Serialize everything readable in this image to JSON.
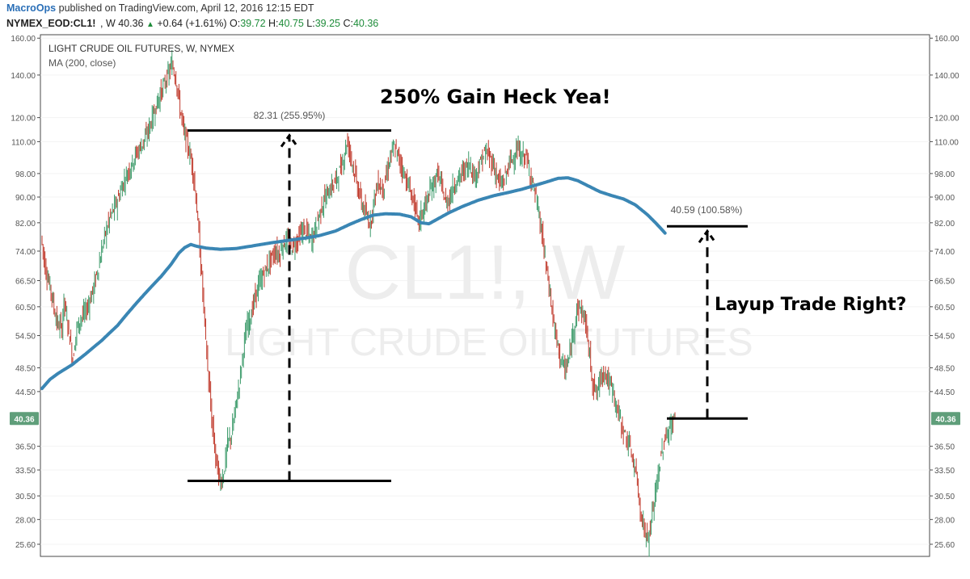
{
  "header": {
    "publisher": "MacroOps",
    "published_text": "published on TradingView.com, April 12, 2016 12:15 EDT"
  },
  "quote": {
    "symbol": "NYMEX_EOD:CL1!",
    "interval_price": ", W 40.36",
    "change": "+0.64 (+1.61%)",
    "open_label": "O:",
    "open": "39.72",
    "high_label": "H:",
    "high": "40.75",
    "low_label": "L:",
    "low": "39.25",
    "close_label": "C:",
    "close": "40.36",
    "colors": {
      "green": "#1e8c3a",
      "brand": "#2a6fb7"
    }
  },
  "chart_data": {
    "type": "line",
    "title": "LIGHT CRUDE OIL FUTURES, W, NYMEX",
    "indicator_label": "MA (200, close)",
    "watermark_symbol": "CL1!, W",
    "watermark_name": "LIGHT CRUDE OIL FUTURES",
    "price_axis_ticks": [
      "160.00",
      "140.00",
      "120.00",
      "110.00",
      "98.00",
      "90.00",
      "82.00",
      "74.00",
      "66.50",
      "60.50",
      "54.50",
      "48.50",
      "44.50",
      "36.50",
      "33.50",
      "30.50",
      "28.00",
      "25.60"
    ],
    "ylim": [
      24.5,
      162
    ],
    "scale": "log",
    "last_price_label": "40.36",
    "last_price_color": "#5f9e7a",
    "price_series": {
      "name": "",
      "colors": {
        "up": "#3d9b6b",
        "down": "#c0392b"
      },
      "keypoints": [
        [
          0,
          78
        ],
        [
          4,
          70
        ],
        [
          10,
          64
        ],
        [
          16,
          57
        ],
        [
          21,
          56
        ],
        [
          23,
          62
        ],
        [
          26,
          58
        ],
        [
          32,
          50
        ],
        [
          36,
          56
        ],
        [
          40,
          58
        ],
        [
          46,
          60
        ],
        [
          52,
          64
        ],
        [
          58,
          70
        ],
        [
          64,
          78
        ],
        [
          70,
          84
        ],
        [
          76,
          88
        ],
        [
          82,
          94
        ],
        [
          88,
          99
        ],
        [
          94,
          104
        ],
        [
          100,
          108
        ],
        [
          106,
          112
        ],
        [
          112,
          120
        ],
        [
          118,
          128
        ],
        [
          124,
          135
        ],
        [
          128,
          140
        ],
        [
          132,
          146
        ],
        [
          136,
          138
        ],
        [
          140,
          124
        ],
        [
          144,
          114
        ],
        [
          148,
          108
        ],
        [
          152,
          102
        ],
        [
          156,
          90
        ],
        [
          160,
          74
        ],
        [
          164,
          60
        ],
        [
          168,
          48
        ],
        [
          172,
          40
        ],
        [
          176,
          35
        ],
        [
          180,
          32
        ],
        [
          184,
          33
        ],
        [
          188,
          37
        ],
        [
          192,
          38
        ],
        [
          196,
          42
        ],
        [
          200,
          46
        ],
        [
          204,
          52
        ],
        [
          208,
          57
        ],
        [
          212,
          59
        ],
        [
          216,
          63
        ],
        [
          220,
          66
        ],
        [
          224,
          68
        ],
        [
          228,
          70
        ],
        [
          232,
          72
        ],
        [
          236,
          74
        ],
        [
          240,
          73
        ],
        [
          244,
          76
        ],
        [
          248,
          77
        ],
        [
          252,
          75
        ],
        [
          256,
          76
        ],
        [
          260,
          78
        ],
        [
          264,
          80
        ],
        [
          268,
          79
        ],
        [
          272,
          77
        ],
        [
          276,
          80
        ],
        [
          280,
          84
        ],
        [
          284,
          88
        ],
        [
          288,
          91
        ],
        [
          292,
          93
        ],
        [
          296,
          95
        ],
        [
          300,
          98
        ],
        [
          304,
          102
        ],
        [
          308,
          110
        ],
        [
          312,
          105
        ],
        [
          316,
          98
        ],
        [
          320,
          92
        ],
        [
          324,
          87
        ],
        [
          328,
          84
        ],
        [
          332,
          82
        ],
        [
          336,
          90
        ],
        [
          340,
          95
        ],
        [
          344,
          92
        ],
        [
          348,
          97
        ],
        [
          352,
          104
        ],
        [
          356,
          108
        ],
        [
          360,
          104
        ],
        [
          364,
          100
        ],
        [
          368,
          96
        ],
        [
          372,
          92
        ],
        [
          376,
          88
        ],
        [
          380,
          82
        ],
        [
          384,
          85
        ],
        [
          388,
          88
        ],
        [
          392,
          92
        ],
        [
          396,
          95
        ],
        [
          400,
          98
        ],
        [
          404,
          93
        ],
        [
          408,
          88
        ],
        [
          412,
          90
        ],
        [
          416,
          94
        ],
        [
          420,
          96
        ],
        [
          424,
          98
        ],
        [
          428,
          100
        ],
        [
          432,
          102
        ],
        [
          436,
          97
        ],
        [
          440,
          99
        ],
        [
          444,
          103
        ],
        [
          448,
          106
        ],
        [
          452,
          104
        ],
        [
          456,
          101
        ],
        [
          460,
          96
        ],
        [
          464,
          94
        ],
        [
          468,
          97
        ],
        [
          472,
          102
        ],
        [
          476,
          104
        ],
        [
          480,
          107
        ],
        [
          484,
          104
        ],
        [
          488,
          105
        ],
        [
          492,
          99
        ],
        [
          496,
          94
        ],
        [
          500,
          88
        ],
        [
          504,
          80
        ],
        [
          508,
          72
        ],
        [
          512,
          65
        ],
        [
          516,
          58
        ],
        [
          520,
          53
        ],
        [
          524,
          50
        ],
        [
          528,
          48
        ],
        [
          532,
          50
        ],
        [
          536,
          55
        ],
        [
          540,
          60
        ],
        [
          544,
          60
        ],
        [
          548,
          58
        ],
        [
          552,
          52
        ],
        [
          556,
          46
        ],
        [
          560,
          44
        ],
        [
          564,
          47
        ],
        [
          568,
          48
        ],
        [
          572,
          46
        ],
        [
          576,
          45
        ],
        [
          580,
          42
        ],
        [
          584,
          40
        ],
        [
          588,
          38
        ],
        [
          592,
          37
        ],
        [
          596,
          35
        ],
        [
          600,
          33
        ],
        [
          604,
          29
        ],
        [
          608,
          27
        ],
        [
          612,
          26
        ],
        [
          614,
          27
        ],
        [
          618,
          30
        ],
        [
          622,
          33
        ],
        [
          626,
          36
        ],
        [
          630,
          38
        ],
        [
          634,
          39
        ],
        [
          638,
          40.36
        ]
      ]
    },
    "moving_average": {
      "name": "MA (200, close)",
      "color": "#3a86b4",
      "keypoints": [
        [
          0,
          45
        ],
        [
          8,
          46.5
        ],
        [
          16,
          47.5
        ],
        [
          30,
          49
        ],
        [
          44,
          51
        ],
        [
          60,
          53.5
        ],
        [
          76,
          56.5
        ],
        [
          92,
          60.5
        ],
        [
          108,
          64.5
        ],
        [
          120,
          67.5
        ],
        [
          130,
          70.5
        ],
        [
          138,
          73.5
        ],
        [
          144,
          75
        ],
        [
          150,
          75.8
        ],
        [
          156,
          75.3
        ],
        [
          166,
          74.8
        ],
        [
          180,
          74.5
        ],
        [
          196,
          74.7
        ],
        [
          212,
          75.4
        ],
        [
          232,
          76.3
        ],
        [
          250,
          77
        ],
        [
          266,
          77.6
        ],
        [
          280,
          78.3
        ],
        [
          296,
          79.6
        ],
        [
          310,
          81.5
        ],
        [
          322,
          83
        ],
        [
          334,
          84.3
        ],
        [
          346,
          84.7
        ],
        [
          360,
          84.6
        ],
        [
          372,
          83.8
        ],
        [
          382,
          82
        ],
        [
          390,
          81.7
        ],
        [
          398,
          83
        ],
        [
          410,
          85
        ],
        [
          424,
          87
        ],
        [
          440,
          89
        ],
        [
          456,
          90.5
        ],
        [
          470,
          91.5
        ],
        [
          484,
          92.6
        ],
        [
          496,
          93.8
        ],
        [
          508,
          95
        ],
        [
          520,
          96.3
        ],
        [
          530,
          96.5
        ],
        [
          540,
          95.5
        ],
        [
          550,
          93.8
        ],
        [
          562,
          91.8
        ],
        [
          574,
          90.5
        ],
        [
          586,
          89.4
        ],
        [
          598,
          87.5
        ],
        [
          610,
          84.5
        ],
        [
          620,
          81.5
        ],
        [
          628,
          79
        ]
      ]
    },
    "annotations": {
      "headline_top": "250% Gain Heck Yea!",
      "headline_right": "Layup Trade Right?",
      "measure_1": {
        "label": "82.31 (255.95%)",
        "low": 32.2,
        "high": 114.5
      },
      "measure_2": {
        "label": "40.59 (100.58%)",
        "low": 40.36,
        "high": 80.95
      }
    }
  }
}
